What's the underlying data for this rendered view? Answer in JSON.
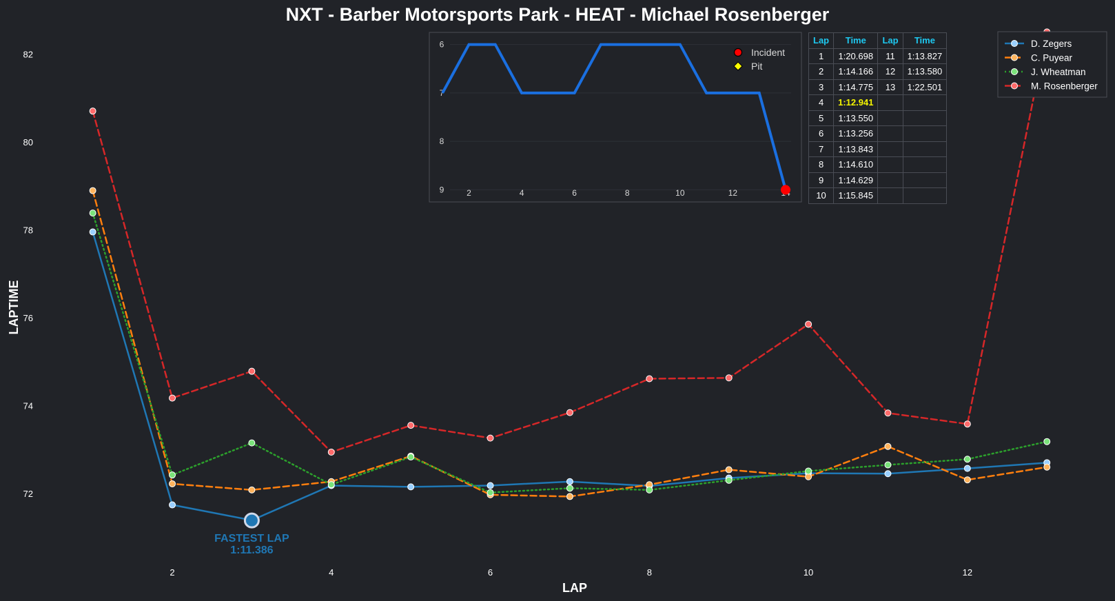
{
  "colors": {
    "background": "#212328",
    "zegers": "#1f77b4",
    "puyear": "#ff7f0e",
    "wheatman": "#2ca02c",
    "rosenberger": "#d62728",
    "position_line": "#1a6fe0",
    "fastest_label": "#1f77b4",
    "table_header": "#1ec8f0",
    "best_lap": "#f5f500"
  },
  "chart_data": [
    {
      "type": "line",
      "title": "NXT - Barber Motorsports Park - HEAT - Michael Rosenberger",
      "xlabel": "LAP",
      "ylabel": "LAPTIME",
      "xlim": [
        0.7,
        13.7
      ],
      "ylim": [
        70.4,
        82.6
      ],
      "xticks": [
        2,
        4,
        6,
        8,
        10,
        12
      ],
      "yticks": [
        72,
        74,
        76,
        78,
        80,
        82
      ],
      "grid": false,
      "legend_position": "top-right",
      "x": [
        1,
        2,
        3,
        4,
        5,
        6,
        7,
        8,
        9,
        10,
        11,
        12,
        13
      ],
      "series": [
        {
          "name": "D. Zegers",
          "style": "solid",
          "values": [
            77.95,
            71.74,
            71.39,
            72.18,
            72.15,
            72.18,
            72.27,
            72.17,
            72.35,
            72.46,
            72.45,
            72.57,
            72.7
          ]
        },
        {
          "name": "C. Puyear",
          "style": "dashed",
          "values": [
            78.89,
            72.22,
            72.08,
            72.27,
            72.85,
            71.97,
            71.93,
            72.2,
            72.54,
            72.38,
            73.07,
            72.31,
            72.6
          ]
        },
        {
          "name": "J. Wheatman",
          "style": "dotted",
          "values": [
            78.38,
            72.42,
            73.15,
            72.2,
            72.83,
            72.02,
            72.12,
            72.08,
            72.3,
            72.51,
            72.65,
            72.78,
            73.18
          ]
        },
        {
          "name": "M. Rosenberger",
          "style": "dashed",
          "values": [
            80.7,
            74.17,
            74.78,
            72.94,
            73.55,
            73.26,
            73.84,
            74.61,
            74.63,
            75.85,
            73.83,
            73.58,
            82.5
          ]
        }
      ],
      "annotations": [
        {
          "label": "FASTEST LAP",
          "value": "1:11.386",
          "x": 3,
          "y": 71.386
        }
      ]
    },
    {
      "type": "line",
      "x": [
        1,
        2,
        3,
        4,
        5,
        6,
        7,
        8,
        9,
        10,
        11,
        12,
        13,
        14
      ],
      "values": [
        7,
        6,
        6,
        7,
        7,
        7,
        6,
        6,
        6,
        6,
        7,
        7,
        7,
        9
      ],
      "xlim": [
        0.5,
        14.6
      ],
      "ylim": [
        9.25,
        5.75
      ],
      "xticks": [
        2,
        4,
        6,
        8,
        10,
        12,
        14
      ],
      "yticks": [
        6,
        7,
        8,
        9
      ],
      "y_inverted": true,
      "markers": [
        {
          "x": 14,
          "y": 9,
          "kind": "Incident"
        }
      ],
      "legend": [
        {
          "label": "Incident",
          "marker": "circle",
          "color": "#ff0000"
        },
        {
          "label": "Pit",
          "marker": "diamond",
          "color": "#ffff00"
        }
      ]
    },
    {
      "type": "table",
      "headers": [
        "Lap",
        "Time",
        "Lap",
        "Time"
      ],
      "rows": [
        [
          "1",
          "1:20.698",
          "11",
          "1:13.827"
        ],
        [
          "2",
          "1:14.166",
          "12",
          "1:13.580"
        ],
        [
          "3",
          "1:14.775",
          "13",
          "1:22.501"
        ],
        [
          "4",
          "1:12.941",
          "",
          ""
        ],
        [
          "5",
          "1:13.550",
          "",
          ""
        ],
        [
          "6",
          "1:13.256",
          "",
          ""
        ],
        [
          "7",
          "1:13.843",
          "",
          ""
        ],
        [
          "8",
          "1:14.610",
          "",
          ""
        ],
        [
          "9",
          "1:14.629",
          "",
          ""
        ],
        [
          "10",
          "1:15.845",
          "",
          ""
        ]
      ],
      "best_lap_row": 3
    }
  ]
}
